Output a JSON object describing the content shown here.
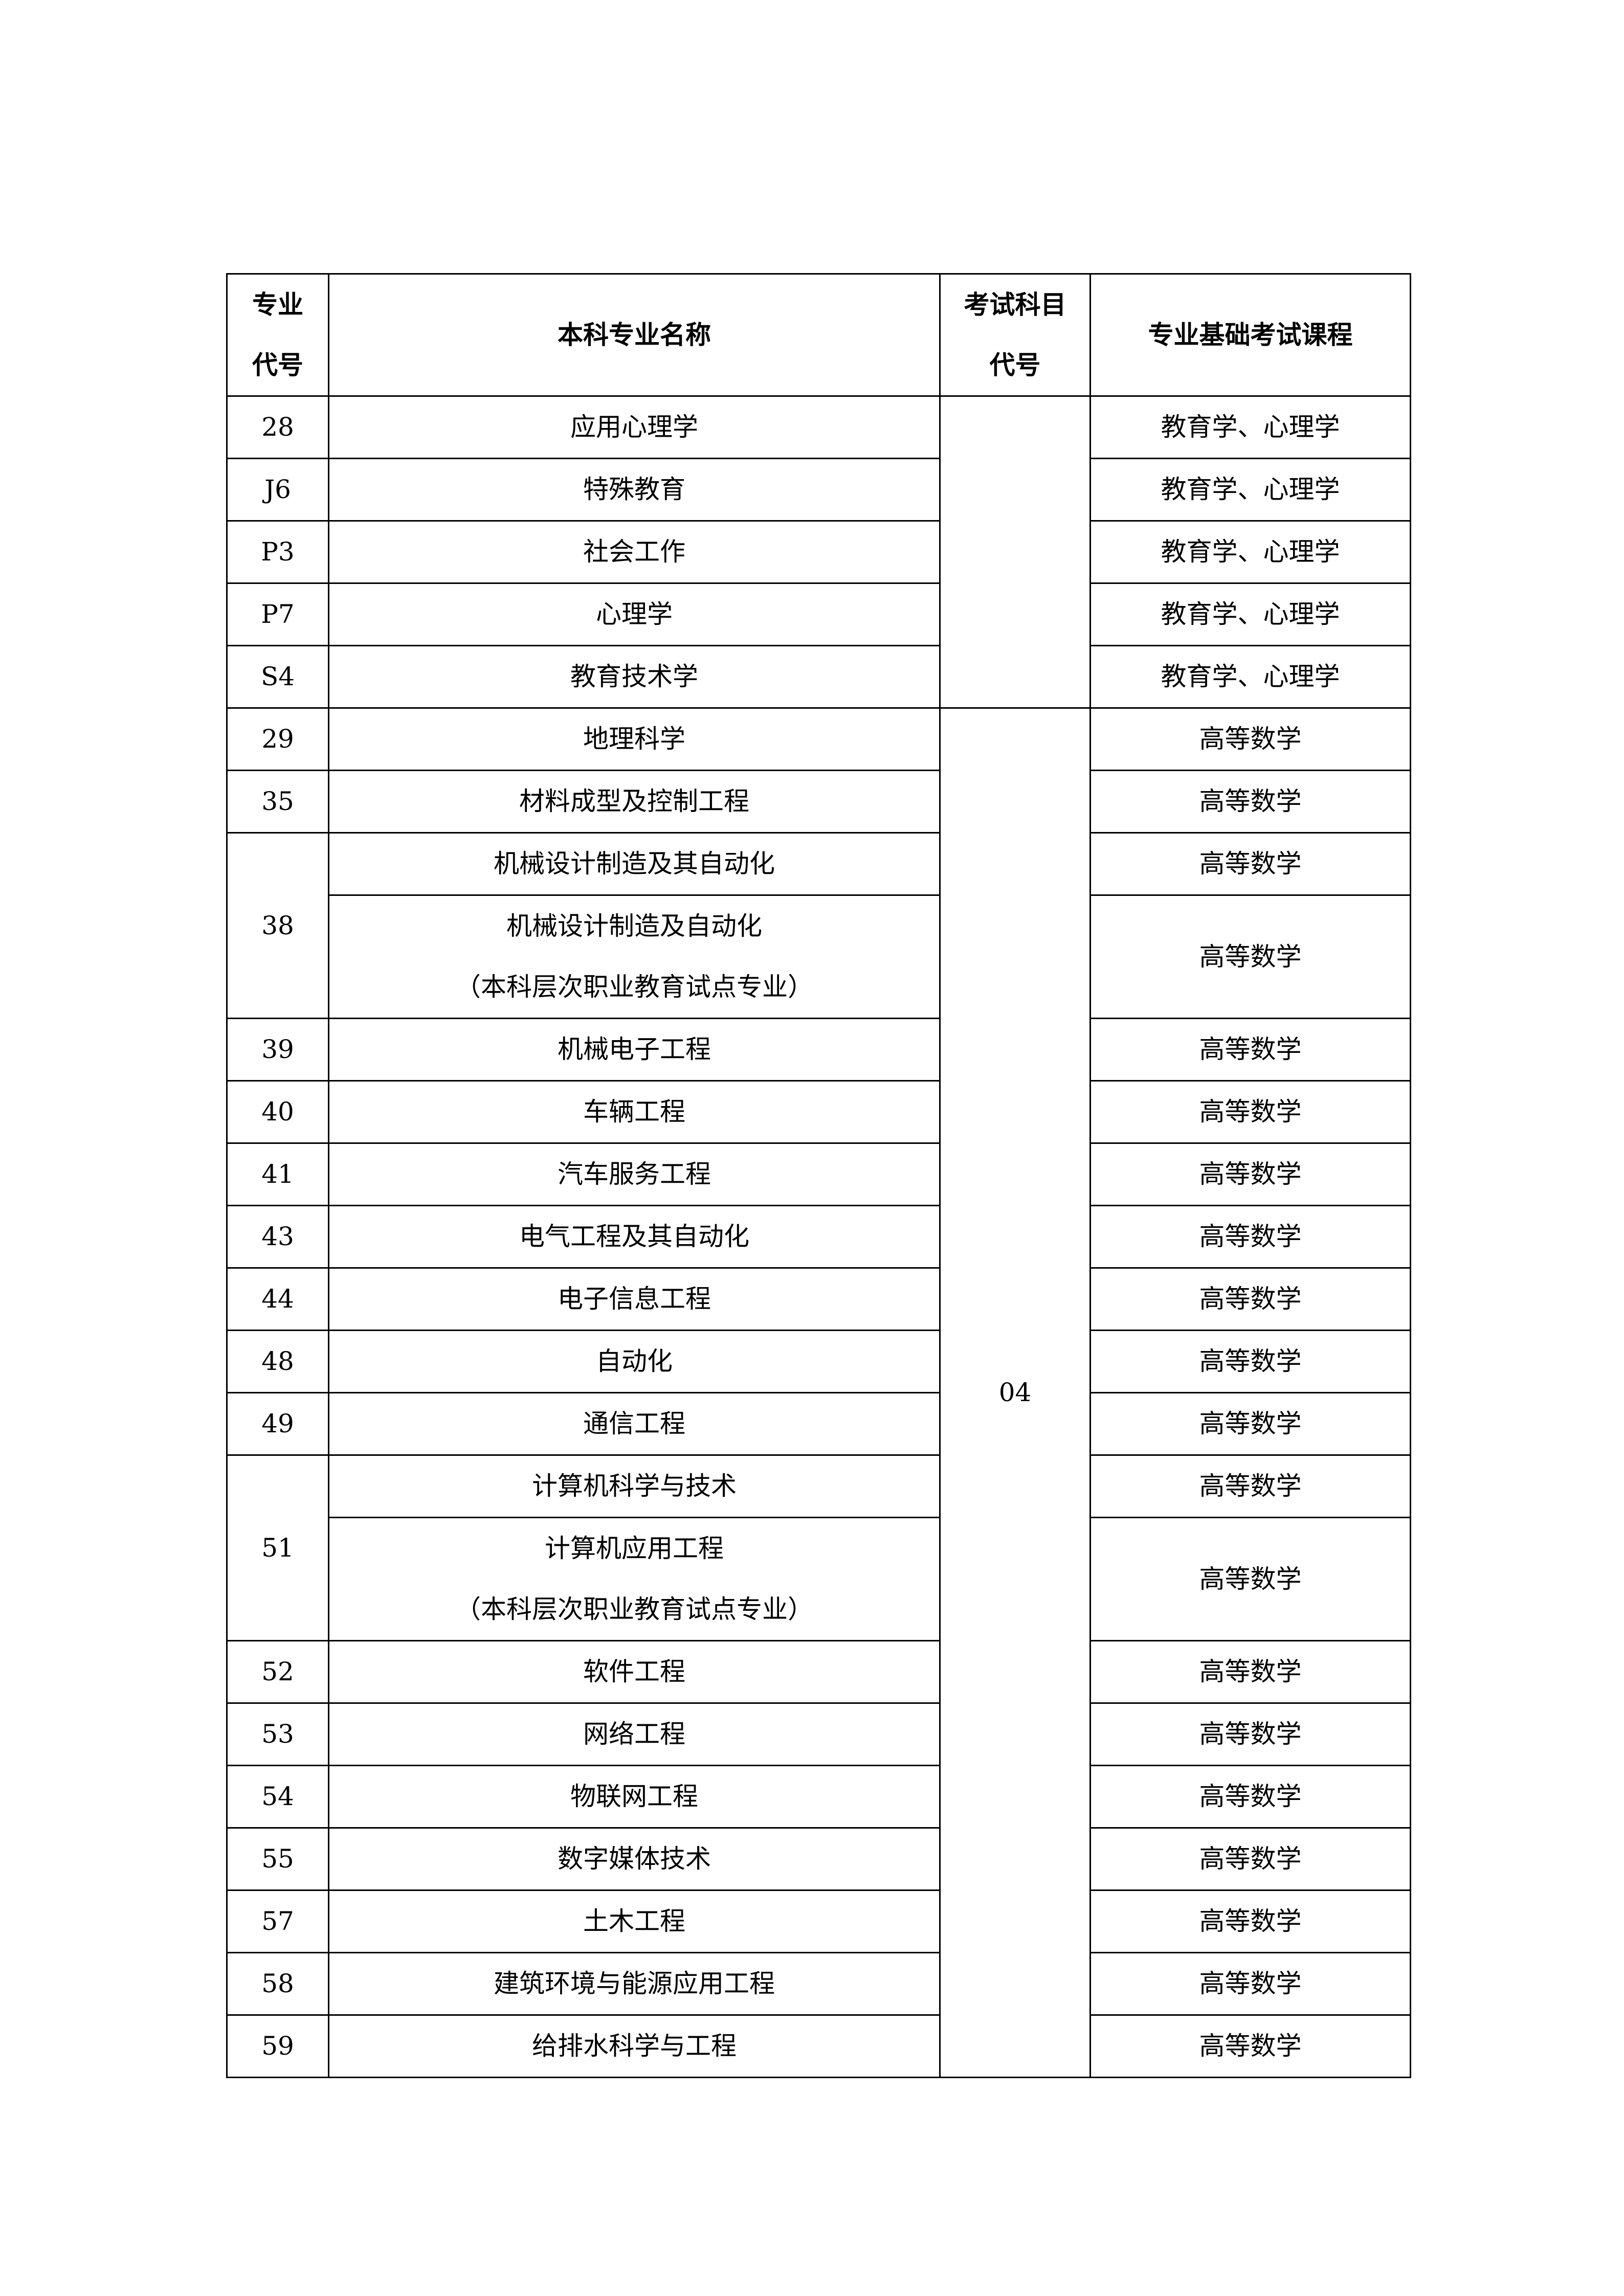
{
  "header": {
    "code": [
      "专业",
      "代号"
    ],
    "name": "本科专业名称",
    "exam_code": [
      "考试科目",
      "代号"
    ],
    "course": "专业基础考试课程"
  },
  "groups": [
    {
      "exam_code": "",
      "majors": [
        {
          "code": "28",
          "entries": [
            {
              "name": [
                "应用心理学"
              ],
              "course": "教育学、心理学"
            }
          ]
        },
        {
          "code": "J6",
          "entries": [
            {
              "name": [
                "特殊教育"
              ],
              "course": "教育学、心理学"
            }
          ]
        },
        {
          "code": "P3",
          "entries": [
            {
              "name": [
                "社会工作"
              ],
              "course": "教育学、心理学"
            }
          ]
        },
        {
          "code": "P7",
          "entries": [
            {
              "name": [
                "心理学"
              ],
              "course": "教育学、心理学"
            }
          ]
        },
        {
          "code": "S4",
          "entries": [
            {
              "name": [
                "教育技术学"
              ],
              "course": "教育学、心理学"
            }
          ]
        }
      ]
    },
    {
      "exam_code": "04",
      "majors": [
        {
          "code": "29",
          "entries": [
            {
              "name": [
                "地理科学"
              ],
              "course": "高等数学"
            }
          ]
        },
        {
          "code": "35",
          "entries": [
            {
              "name": [
                "材料成型及控制工程"
              ],
              "course": "高等数学"
            }
          ]
        },
        {
          "code": "38",
          "entries": [
            {
              "name": [
                "机械设计制造及其自动化"
              ],
              "course": "高等数学"
            },
            {
              "name": [
                "机械设计制造及自动化",
                "（本科层次职业教育试点专业）"
              ],
              "course": "高等数学"
            }
          ]
        },
        {
          "code": "39",
          "entries": [
            {
              "name": [
                "机械电子工程"
              ],
              "course": "高等数学"
            }
          ]
        },
        {
          "code": "40",
          "entries": [
            {
              "name": [
                "车辆工程"
              ],
              "course": "高等数学"
            }
          ]
        },
        {
          "code": "41",
          "entries": [
            {
              "name": [
                "汽车服务工程"
              ],
              "course": "高等数学"
            }
          ]
        },
        {
          "code": "43",
          "entries": [
            {
              "name": [
                "电气工程及其自动化"
              ],
              "course": "高等数学"
            }
          ]
        },
        {
          "code": "44",
          "entries": [
            {
              "name": [
                "电子信息工程"
              ],
              "course": "高等数学"
            }
          ]
        },
        {
          "code": "48",
          "entries": [
            {
              "name": [
                "自动化"
              ],
              "course": "高等数学"
            }
          ]
        },
        {
          "code": "49",
          "entries": [
            {
              "name": [
                "通信工程"
              ],
              "course": "高等数学"
            }
          ]
        },
        {
          "code": "51",
          "entries": [
            {
              "name": [
                "计算机科学与技术"
              ],
              "course": "高等数学"
            },
            {
              "name": [
                "计算机应用工程",
                "（本科层次职业教育试点专业）"
              ],
              "course": "高等数学"
            }
          ]
        },
        {
          "code": "52",
          "entries": [
            {
              "name": [
                "软件工程"
              ],
              "course": "高等数学"
            }
          ]
        },
        {
          "code": "53",
          "entries": [
            {
              "name": [
                "网络工程"
              ],
              "course": "高等数学"
            }
          ]
        },
        {
          "code": "54",
          "entries": [
            {
              "name": [
                "物联网工程"
              ],
              "course": "高等数学"
            }
          ]
        },
        {
          "code": "55",
          "entries": [
            {
              "name": [
                "数字媒体技术"
              ],
              "course": "高等数学"
            }
          ]
        },
        {
          "code": "57",
          "entries": [
            {
              "name": [
                "土木工程"
              ],
              "course": "高等数学"
            }
          ]
        },
        {
          "code": "58",
          "entries": [
            {
              "name": [
                "建筑环境与能源应用工程"
              ],
              "course": "高等数学"
            }
          ]
        },
        {
          "code": "59",
          "entries": [
            {
              "name": [
                "给排水科学与工程"
              ],
              "course": "高等数学"
            }
          ]
        }
      ]
    }
  ]
}
